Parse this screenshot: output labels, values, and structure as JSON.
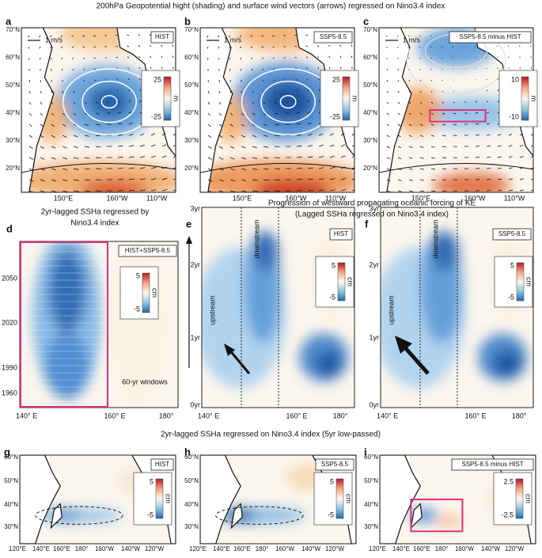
{
  "top": {
    "title": "200hPa Geopotential hight (shading) and surface wind vectors (arrows) regressed on Nino3.4 index",
    "lat_labels": [
      "70°N",
      "60°N",
      "50°N",
      "40°N",
      "30°N",
      "20°N"
    ],
    "lon_labels": [
      "150°E",
      "160°W",
      "110°W"
    ],
    "scale_label": "1 m/s",
    "panels": [
      {
        "letter": "a",
        "tag": "HIST",
        "cbar_max": "25",
        "cbar_min": "-25",
        "cbar_unit": "m"
      },
      {
        "letter": "b",
        "tag": "SSP5-8.5",
        "cbar_max": "25",
        "cbar_min": "-25",
        "cbar_unit": "m"
      },
      {
        "letter": "c",
        "tag": "SSP5-8.5 minus HIST",
        "cbar_max": "10",
        "cbar_min": "-10",
        "cbar_unit": "m"
      }
    ]
  },
  "middle": {
    "left_title": [
      "2yr-lagged SSHa regressed by",
      "Nino3.4 index"
    ],
    "title": [
      "Progression of westward propagating oceanic forcing of KE",
      "(Lagged SSHa regressed on Nino3.4 index)"
    ],
    "lon_labels": [
      "140° E",
      "160° E",
      "180°"
    ],
    "d": {
      "letter": "d",
      "tag": "HIST+SSP5-8.5",
      "year_labels": [
        "2050",
        "2020",
        "1990",
        "1960"
      ],
      "note": "60-yr windows",
      "cbar_max": "5",
      "cbar_min": "-5",
      "cbar_unit": "cm"
    },
    "lag_labels": [
      "3yr",
      "2yr",
      "1yr",
      "0yr"
    ],
    "region_labels": [
      "upstream",
      "downstream"
    ],
    "panels": [
      {
        "letter": "e",
        "tag": "HIST",
        "cbar_max": "5",
        "cbar_min": "-5",
        "cbar_unit": "cm"
      },
      {
        "letter": "f",
        "tag": "SSP5-8.5",
        "cbar_max": "5",
        "cbar_min": "-5",
        "cbar_unit": "cm"
      }
    ]
  },
  "bottom": {
    "title": "2yr-lagged SSHa regressed on Nino3.4 index (5yr low-passed)",
    "lat_labels": [
      "60°N",
      "50°N",
      "40°N",
      "30°N"
    ],
    "lon_labels": [
      "120°E",
      "140°E",
      "160°E",
      "180°",
      "160°W",
      "140°W",
      "120°W"
    ],
    "panels": [
      {
        "letter": "g",
        "tag": "HIST",
        "cbar_max": "5",
        "cbar_min": "-5",
        "cbar_unit": "cm"
      },
      {
        "letter": "h",
        "tag": "SSP5-8.5",
        "cbar_max": "5",
        "cbar_min": "-5",
        "cbar_unit": "cm"
      },
      {
        "letter": "i",
        "tag": "SSP5-8.5 minus HIST",
        "cbar_max": "2.5",
        "cbar_min": "-2.5",
        "cbar_unit": "cm"
      }
    ]
  }
}
